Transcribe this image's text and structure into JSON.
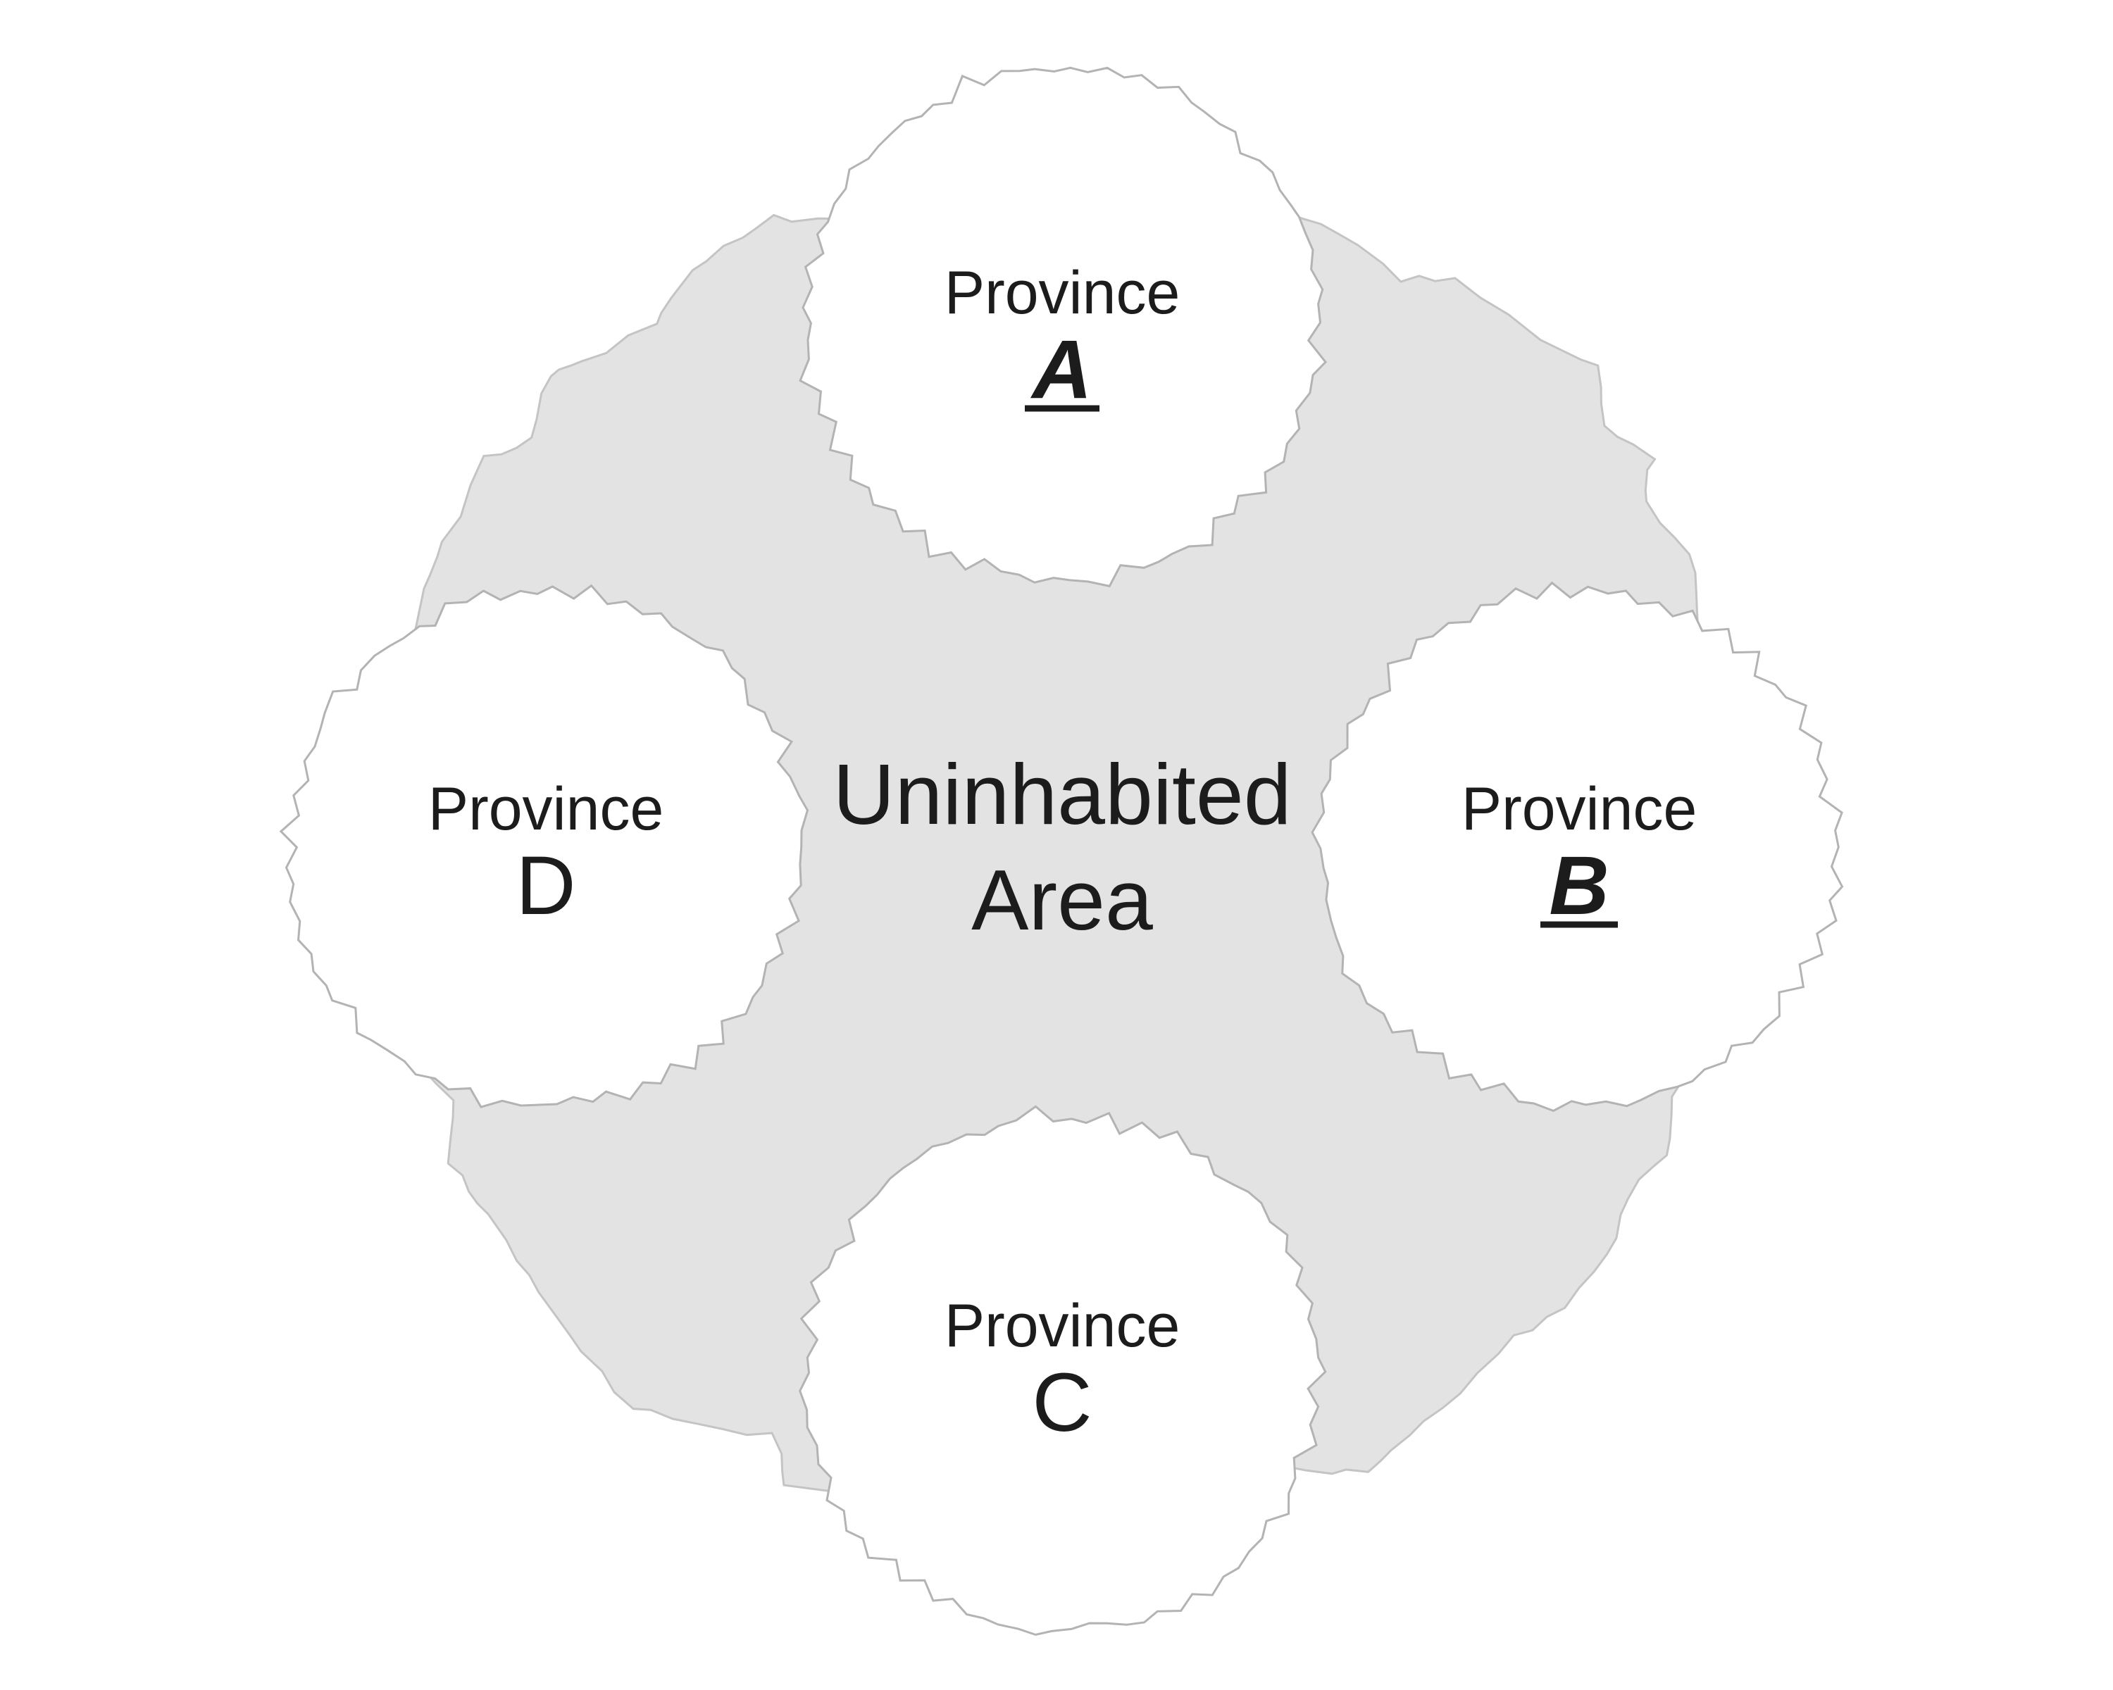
{
  "map": {
    "center_area": {
      "line1": "Uninhabited",
      "line2": "Area",
      "fill_color": "#e3e3e3",
      "border_color": "#c4c4c4"
    },
    "provinces": [
      {
        "id": "A",
        "word": "Province",
        "letter": "A",
        "emphasis": "bold-italic-underline"
      },
      {
        "id": "B",
        "word": "Province",
        "letter": "B",
        "emphasis": "bold-italic-underline"
      },
      {
        "id": "C",
        "word": "Province",
        "letter": "C",
        "emphasis": "none"
      },
      {
        "id": "D",
        "word": "Province",
        "letter": "D",
        "emphasis": "none"
      }
    ],
    "province_fill_color": "#ffffff",
    "province_border_color": "#b3b3b3",
    "text_color": "#1c1c1c"
  }
}
